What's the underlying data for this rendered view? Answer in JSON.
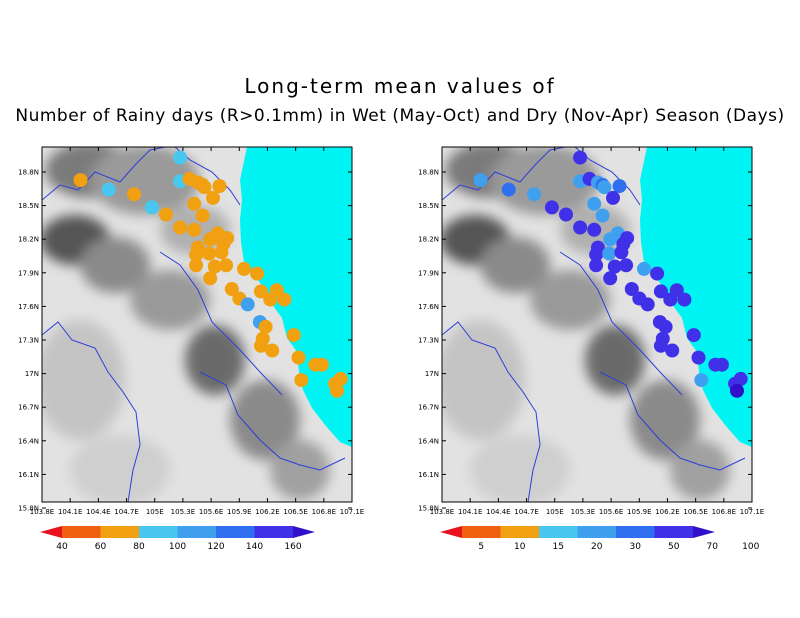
{
  "title": {
    "line1": "Long-term mean values of",
    "line2": "Number of Rainy days (R>0.1mm) in Wet (May-Oct) and Dry (Nov-Apr) Season (Days)"
  },
  "axes": {
    "x_ticks": [
      "103.8E",
      "104.1E",
      "104.4E",
      "104.7E",
      "105E",
      "105.3E",
      "105.6E",
      "105.9E",
      "106.2E",
      "106.5E",
      "106.8E",
      "107.1E"
    ],
    "y_ticks": [
      "18.8N",
      "18.5N",
      "18.2N",
      "17.9N",
      "17.6N",
      "17.3N",
      "17N",
      "16.7N",
      "16.4N",
      "16.1N",
      "15.8N"
    ]
  },
  "colors": {
    "sea": "#00f4f4",
    "land_light": "#e8e8e8",
    "land_dark": "#505050",
    "river": "#2f3fd6"
  },
  "panels": [
    {
      "name": "wet-season",
      "legend": {
        "colors": [
          "#e8121e",
          "#f06010",
          "#f0a010",
          "#48c8f0",
          "#40a0f0",
          "#3070f0",
          "#4030e8",
          "#3010c8"
        ],
        "labels": [
          "40",
          "60",
          "80",
          "100",
          "120",
          "140",
          "160"
        ]
      },
      "stations": [
        {
          "lon": 104.21,
          "lat": 18.52,
          "value": 75
        },
        {
          "lon": 104.51,
          "lat": 18.44,
          "value": 95
        },
        {
          "lon": 104.78,
          "lat": 18.4,
          "value": 65
        },
        {
          "lon": 104.97,
          "lat": 18.29,
          "value": 88
        },
        {
          "lon": 105.12,
          "lat": 18.23,
          "value": 75
        },
        {
          "lon": 105.27,
          "lat": 18.71,
          "value": 92
        },
        {
          "lon": 105.27,
          "lat": 18.51,
          "value": 92
        },
        {
          "lon": 105.37,
          "lat": 18.53,
          "value": 65
        },
        {
          "lon": 105.46,
          "lat": 18.5,
          "value": 72
        },
        {
          "lon": 105.51,
          "lat": 18.48,
          "value": 75
        },
        {
          "lon": 105.53,
          "lat": 18.46,
          "value": 72
        },
        {
          "lon": 105.69,
          "lat": 18.47,
          "value": 75
        },
        {
          "lon": 105.42,
          "lat": 18.32,
          "value": 78
        },
        {
          "lon": 105.62,
          "lat": 18.37,
          "value": 78
        },
        {
          "lon": 105.51,
          "lat": 18.22,
          "value": 62
        },
        {
          "lon": 105.42,
          "lat": 18.1,
          "value": 75
        },
        {
          "lon": 105.27,
          "lat": 18.12,
          "value": 72
        },
        {
          "lon": 105.59,
          "lat": 18.02,
          "value": 72
        },
        {
          "lon": 105.67,
          "lat": 18.07,
          "value": 62
        },
        {
          "lon": 105.73,
          "lat": 17.98,
          "value": 72
        },
        {
          "lon": 105.77,
          "lat": 18.03,
          "value": 65
        },
        {
          "lon": 105.46,
          "lat": 17.95,
          "value": 72
        },
        {
          "lon": 105.44,
          "lat": 17.89,
          "value": 75
        },
        {
          "lon": 105.58,
          "lat": 17.9,
          "value": 65
        },
        {
          "lon": 105.71,
          "lat": 17.91,
          "value": 75
        },
        {
          "lon": 105.76,
          "lat": 17.8,
          "value": 78
        },
        {
          "lon": 105.44,
          "lat": 17.8,
          "value": 75
        },
        {
          "lon": 105.64,
          "lat": 17.79,
          "value": 72
        },
        {
          "lon": 105.95,
          "lat": 17.77,
          "value": 65
        },
        {
          "lon": 106.09,
          "lat": 17.73,
          "value": 72
        },
        {
          "lon": 105.59,
          "lat": 17.69,
          "value": 72
        },
        {
          "lon": 105.82,
          "lat": 17.6,
          "value": 62
        },
        {
          "lon": 106.13,
          "lat": 17.58,
          "value": 62
        },
        {
          "lon": 106.3,
          "lat": 17.59,
          "value": 62
        },
        {
          "lon": 105.9,
          "lat": 17.52,
          "value": 72
        },
        {
          "lon": 105.99,
          "lat": 17.47,
          "value": 105
        },
        {
          "lon": 106.23,
          "lat": 17.51,
          "value": 62
        },
        {
          "lon": 106.38,
          "lat": 17.51,
          "value": 75
        },
        {
          "lon": 106.12,
          "lat": 17.32,
          "value": 100
        },
        {
          "lon": 106.18,
          "lat": 17.28,
          "value": 65
        },
        {
          "lon": 106.15,
          "lat": 17.18,
          "value": 72
        },
        {
          "lon": 106.48,
          "lat": 17.21,
          "value": 72
        },
        {
          "lon": 106.13,
          "lat": 17.12,
          "value": 72
        },
        {
          "lon": 106.25,
          "lat": 17.08,
          "value": 72
        },
        {
          "lon": 106.53,
          "lat": 17.02,
          "value": 72
        },
        {
          "lon": 106.71,
          "lat": 16.96,
          "value": 78
        },
        {
          "lon": 106.78,
          "lat": 16.96,
          "value": 72
        },
        {
          "lon": 106.56,
          "lat": 16.83,
          "value": 72
        },
        {
          "lon": 106.92,
          "lat": 16.8,
          "value": 72
        },
        {
          "lon": 106.98,
          "lat": 16.84,
          "value": 72
        },
        {
          "lon": 106.94,
          "lat": 16.74,
          "value": 62
        }
      ]
    },
    {
      "name": "dry-season",
      "legend": {
        "colors": [
          "#e8121e",
          "#f06010",
          "#f0a010",
          "#48c8f0",
          "#40a0f0",
          "#3070f0",
          "#4030e8",
          "#3010c8"
        ],
        "labels": [
          "5",
          "10",
          "15",
          "20",
          "30",
          "50",
          "70",
          "100"
        ]
      },
      "stations": [
        {
          "lon": 104.21,
          "lat": 18.52,
          "value": 20
        },
        {
          "lon": 104.51,
          "lat": 18.44,
          "value": 35
        },
        {
          "lon": 104.78,
          "lat": 18.4,
          "value": 25
        },
        {
          "lon": 104.97,
          "lat": 18.29,
          "value": 55
        },
        {
          "lon": 105.12,
          "lat": 18.23,
          "value": 55
        },
        {
          "lon": 105.27,
          "lat": 18.71,
          "value": 55
        },
        {
          "lon": 105.27,
          "lat": 18.51,
          "value": 25
        },
        {
          "lon": 105.37,
          "lat": 18.53,
          "value": 55
        },
        {
          "lon": 105.46,
          "lat": 18.5,
          "value": 25
        },
        {
          "lon": 105.51,
          "lat": 18.48,
          "value": 35
        },
        {
          "lon": 105.53,
          "lat": 18.46,
          "value": 25
        },
        {
          "lon": 105.69,
          "lat": 18.47,
          "value": 30
        },
        {
          "lon": 105.42,
          "lat": 18.32,
          "value": 25
        },
        {
          "lon": 105.62,
          "lat": 18.37,
          "value": 55
        },
        {
          "lon": 105.51,
          "lat": 18.22,
          "value": 25
        },
        {
          "lon": 105.42,
          "lat": 18.1,
          "value": 55
        },
        {
          "lon": 105.27,
          "lat": 18.12,
          "value": 55
        },
        {
          "lon": 105.59,
          "lat": 18.02,
          "value": 25
        },
        {
          "lon": 105.67,
          "lat": 18.07,
          "value": 25
        },
        {
          "lon": 105.73,
          "lat": 17.98,
          "value": 55
        },
        {
          "lon": 105.77,
          "lat": 18.03,
          "value": 55
        },
        {
          "lon": 105.46,
          "lat": 17.95,
          "value": 55
        },
        {
          "lon": 105.44,
          "lat": 17.89,
          "value": 55
        },
        {
          "lon": 105.58,
          "lat": 17.9,
          "value": 25
        },
        {
          "lon": 105.71,
          "lat": 17.91,
          "value": 55
        },
        {
          "lon": 105.76,
          "lat": 17.8,
          "value": 55
        },
        {
          "lon": 105.44,
          "lat": 17.8,
          "value": 55
        },
        {
          "lon": 105.64,
          "lat": 17.79,
          "value": 55
        },
        {
          "lon": 105.95,
          "lat": 17.77,
          "value": 25
        },
        {
          "lon": 106.09,
          "lat": 17.73,
          "value": 55
        },
        {
          "lon": 105.59,
          "lat": 17.69,
          "value": 55
        },
        {
          "lon": 105.82,
          "lat": 17.6,
          "value": 55
        },
        {
          "lon": 106.13,
          "lat": 17.58,
          "value": 55
        },
        {
          "lon": 106.3,
          "lat": 17.59,
          "value": 55
        },
        {
          "lon": 105.9,
          "lat": 17.52,
          "value": 55
        },
        {
          "lon": 105.99,
          "lat": 17.47,
          "value": 55
        },
        {
          "lon": 106.23,
          "lat": 17.51,
          "value": 55
        },
        {
          "lon": 106.38,
          "lat": 17.51,
          "value": 55
        },
        {
          "lon": 106.12,
          "lat": 17.32,
          "value": 55
        },
        {
          "lon": 106.18,
          "lat": 17.28,
          "value": 55
        },
        {
          "lon": 106.15,
          "lat": 17.18,
          "value": 55
        },
        {
          "lon": 106.48,
          "lat": 17.21,
          "value": 55
        },
        {
          "lon": 106.13,
          "lat": 17.12,
          "value": 55
        },
        {
          "lon": 106.25,
          "lat": 17.08,
          "value": 55
        },
        {
          "lon": 106.53,
          "lat": 17.02,
          "value": 55
        },
        {
          "lon": 106.71,
          "lat": 16.96,
          "value": 55
        },
        {
          "lon": 106.78,
          "lat": 16.96,
          "value": 55
        },
        {
          "lon": 106.56,
          "lat": 16.83,
          "value": 25
        },
        {
          "lon": 106.92,
          "lat": 16.8,
          "value": 55
        },
        {
          "lon": 106.98,
          "lat": 16.84,
          "value": 55
        },
        {
          "lon": 106.94,
          "lat": 16.74,
          "value": 75
        }
      ]
    }
  ]
}
